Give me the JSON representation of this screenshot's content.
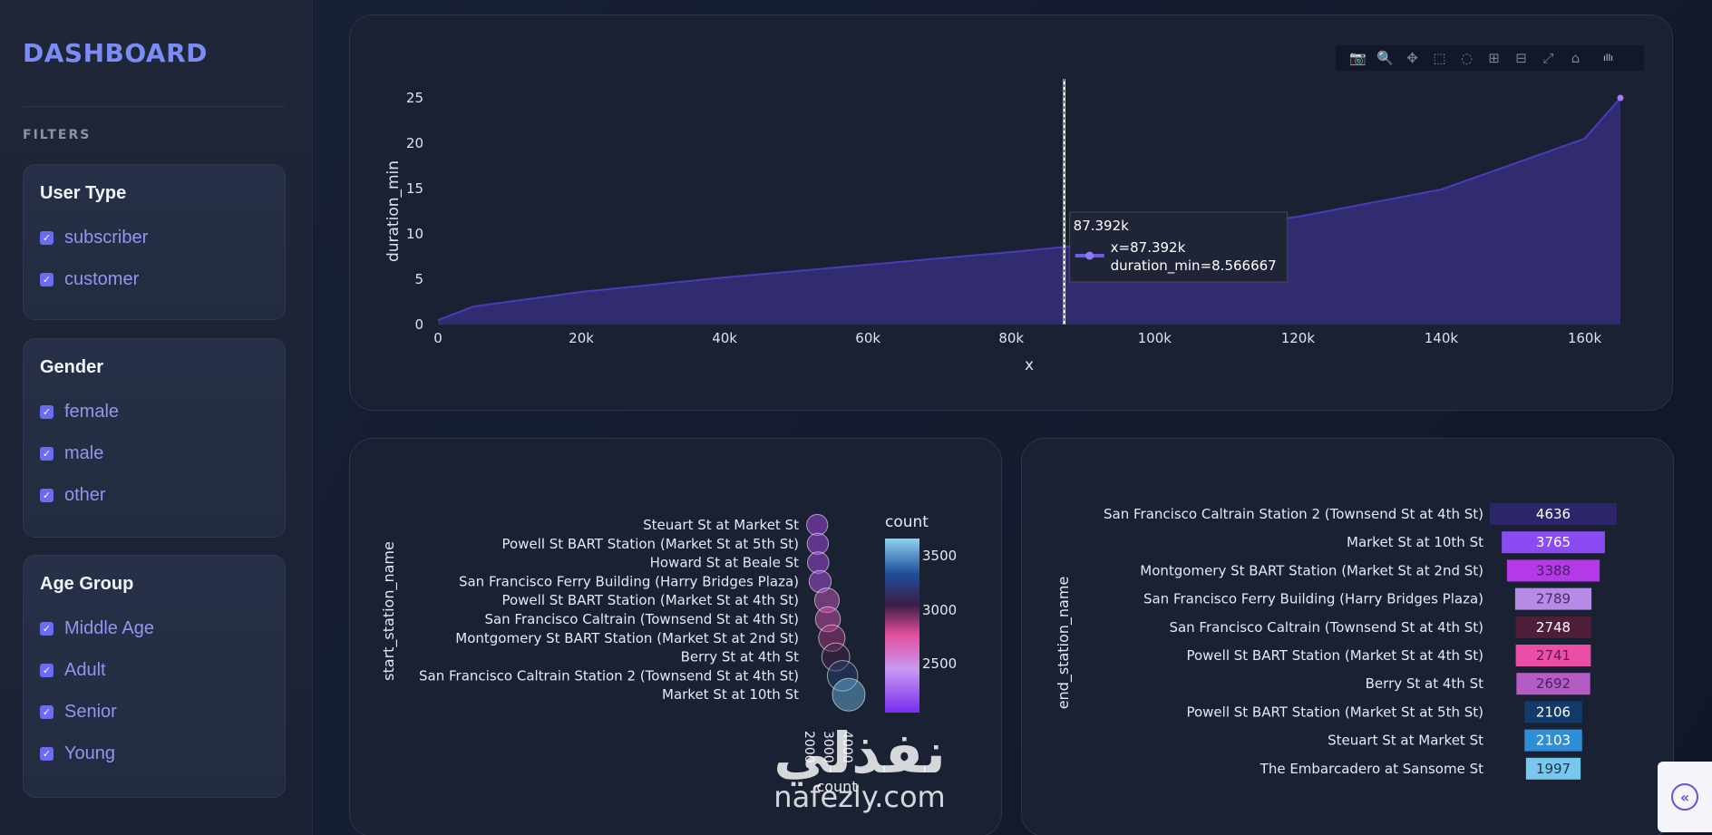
{
  "sidebar": {
    "brand": "DASHBOARD",
    "filters_title": "FILTERS",
    "groups": [
      {
        "title": "User Type",
        "options": [
          "subscriber",
          "customer"
        ]
      },
      {
        "title": "Gender",
        "options": [
          "female",
          "male",
          "other"
        ]
      },
      {
        "title": "Age Group",
        "options": [
          "Middle Age",
          "Adult",
          "Senior",
          "Young"
        ]
      }
    ],
    "checkmark": "✓"
  },
  "modebar": {
    "icons": [
      "camera-icon",
      "zoom-icon",
      "pan-icon",
      "box-select-icon",
      "lasso-icon",
      "zoom-in-icon",
      "zoom-out-icon",
      "autoscale-icon",
      "reset-axes-icon",
      "plotly-logo-icon"
    ],
    "glyphs": [
      "📷",
      "🔍",
      "✥",
      "⬚",
      "◌",
      "⊞",
      "⊟",
      "⤢",
      "⌂",
      "ıllı"
    ]
  },
  "chart_data": [
    {
      "type": "area",
      "xlabel": "x",
      "ylabel": "duration_min",
      "xlim": [
        0,
        165000
      ],
      "ylim": [
        0,
        25
      ],
      "x_ticks": [
        "0",
        "20k",
        "40k",
        "60k",
        "80k",
        "100k",
        "120k",
        "140k",
        "160k"
      ],
      "x_tick_values": [
        0,
        20000,
        40000,
        60000,
        80000,
        100000,
        120000,
        140000,
        160000
      ],
      "y_ticks": [
        "0",
        "5",
        "10",
        "15",
        "20",
        "25"
      ],
      "y_tick_values": [
        0,
        5,
        10,
        15,
        20,
        25
      ],
      "x": [
        0,
        5000,
        20000,
        40000,
        60000,
        80000,
        87392,
        100000,
        120000,
        140000,
        160000,
        165000
      ],
      "y": [
        0.5,
        2.0,
        3.6,
        5.2,
        6.6,
        8.0,
        8.566667,
        9.7,
        11.9,
        14.9,
        20.5,
        25.0
      ],
      "hover": {
        "title": "87.392k",
        "x_line": "x=87.392k",
        "y_line": "duration_min=8.566667",
        "x_value": 87392,
        "y_value": 8.566667
      },
      "color": "#3a2f86"
    },
    {
      "type": "scatter",
      "ylabel": "start_station_name",
      "xlabel": "count",
      "categories": [
        "Steuart St at Market St",
        "Powell St BART Station (Market St at 5th St)",
        "Howard St at Beale St",
        "San Francisco Ferry Building (Harry Bridges Plaza)",
        "Powell St BART Station (Market St at 4th St)",
        "San Francisco Caltrain (Townsend St at 4th St)",
        "Montgomery St BART Station (Market St at 2nd St)",
        "Berry St at 4th St",
        "San Francisco Caltrain Station 2  (Townsend St at 4th St)",
        "Market St at 10th St"
      ],
      "values": [
        2150,
        2180,
        2200,
        2300,
        2650,
        2700,
        2900,
        3100,
        3450,
        3765
      ],
      "x_ticks": [
        "2000",
        "3000",
        "4000"
      ],
      "legend_title": "count",
      "legend_ticks": [
        "3500",
        "3000",
        "2500"
      ]
    },
    {
      "type": "table",
      "ylabel": "end_station_name",
      "categories": [
        "San Francisco Caltrain Station 2  (Townsend St at 4th St)",
        "Market St at 10th St",
        "Montgomery St BART Station (Market St at 2nd St)",
        "San Francisco Ferry Building (Harry Bridges Plaza)",
        "San Francisco Caltrain (Townsend St at 4th St)",
        "Powell St BART Station (Market St at 4th St)",
        "Berry St at 4th St",
        "Powell St BART Station (Market St at 5th St)",
        "Steuart St at Market St",
        "The Embarcadero at Sansome St"
      ],
      "values": [
        4636,
        3765,
        3388,
        2789,
        2748,
        2741,
        2692,
        2106,
        2103,
        1997
      ],
      "labels": [
        "4636",
        "3765",
        "3388",
        "2789",
        "2748",
        "2741",
        "2692",
        "2106",
        "2103",
        "1997"
      ],
      "colors": [
        "#2c2569",
        "#8a4cf2",
        "#b33ae6",
        "#b68ae6",
        "#4f1e3a",
        "#ea4ea6",
        "#b45cc4",
        "#123a6a",
        "#2e8fd6",
        "#77c8ec"
      ],
      "label_colors": [
        "#ffffff",
        "#ffffff",
        "#4a1e6a",
        "#4a2a66",
        "#ffffff",
        "#5a1d45",
        "#4a2060",
        "#ffffff",
        "#ffffff",
        "#1b3552"
      ]
    }
  ],
  "watermark": {
    "arabic": "نفذلي",
    "latin": "nafezly.com"
  }
}
